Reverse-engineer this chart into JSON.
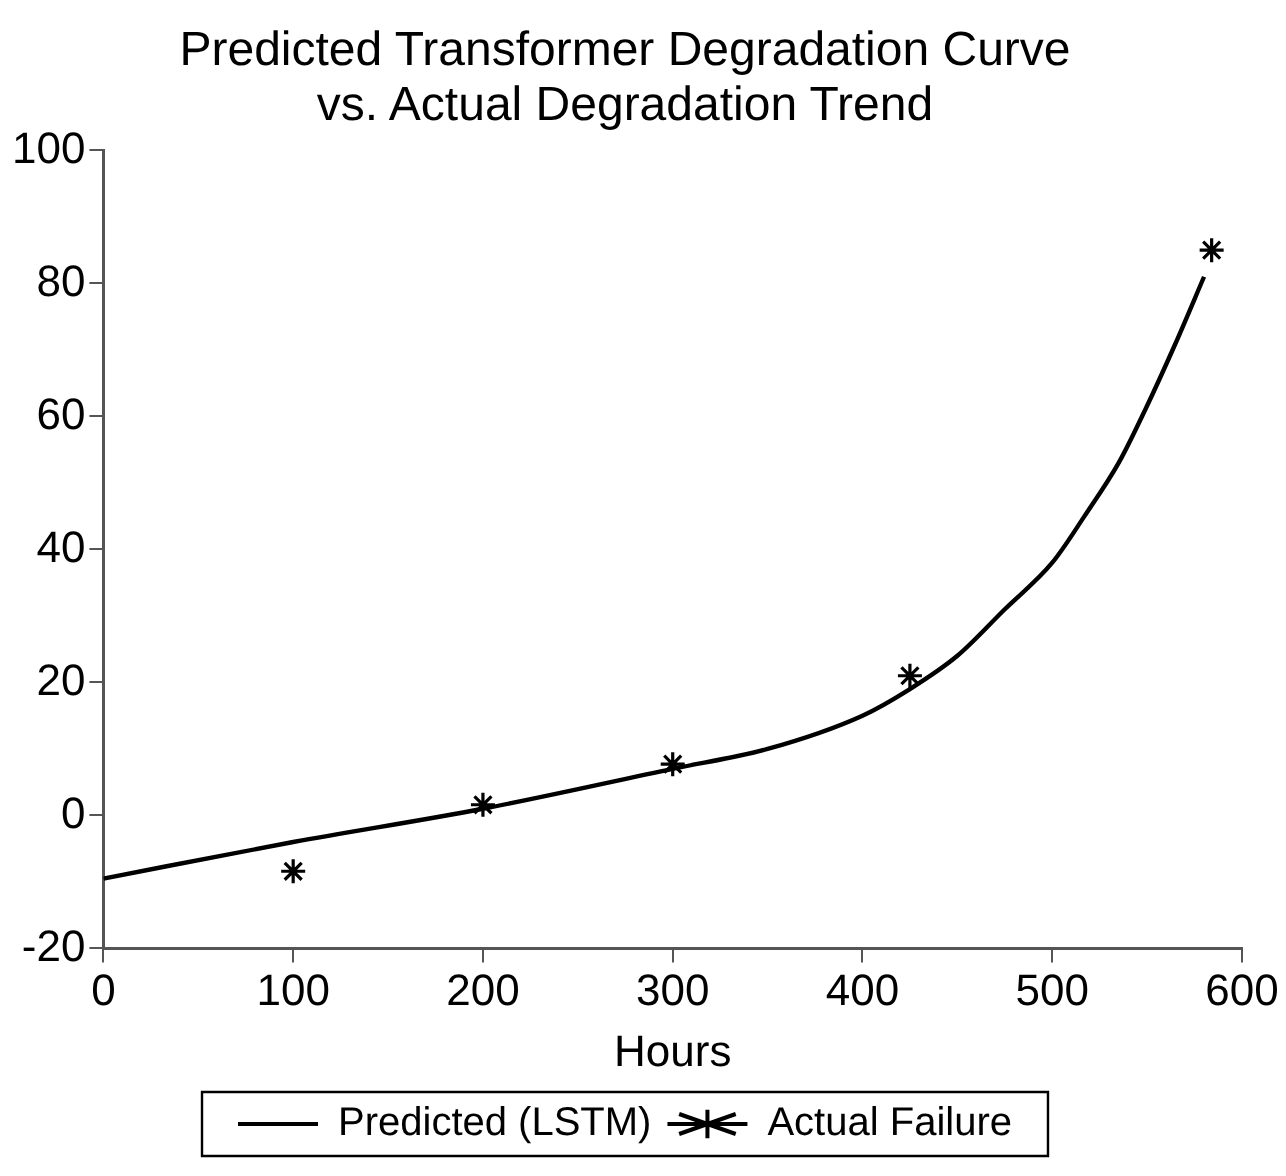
{
  "chart_data": {
    "type": "line",
    "title": "Predicted Transformer Degradation Curve vs. Actual Degradation Trend",
    "xlabel": "Hours",
    "xlim": [
      0,
      600
    ],
    "xticks": [
      0,
      100,
      200,
      300,
      400,
      500,
      600
    ],
    "ylim": [
      -20,
      100
    ],
    "yticks": [
      -20,
      0,
      20,
      40,
      60,
      80,
      100
    ],
    "grid": false,
    "legend": "bottom",
    "series": [
      {
        "name": "Predicted (LSTM)",
        "type": "line",
        "color": "#000000",
        "marker": "none",
        "line_style": "solid",
        "x": [
          0,
          100,
          200,
          300,
          350,
          400,
          425,
          450,
          475,
          500,
          517,
          535,
          549,
          565,
          580
        ],
        "values": [
          -9.5,
          -4,
          1,
          7,
          10,
          15,
          19,
          24,
          31,
          38,
          45,
          53,
          61,
          71,
          81
        ]
      },
      {
        "name": "Actual Failure",
        "type": "scatter",
        "color": "#000000",
        "marker": "cross",
        "x": [
          100,
          200,
          300,
          425,
          584
        ],
        "values": [
          -8.4,
          1.6,
          7.7,
          21,
          85
        ]
      }
    ]
  }
}
